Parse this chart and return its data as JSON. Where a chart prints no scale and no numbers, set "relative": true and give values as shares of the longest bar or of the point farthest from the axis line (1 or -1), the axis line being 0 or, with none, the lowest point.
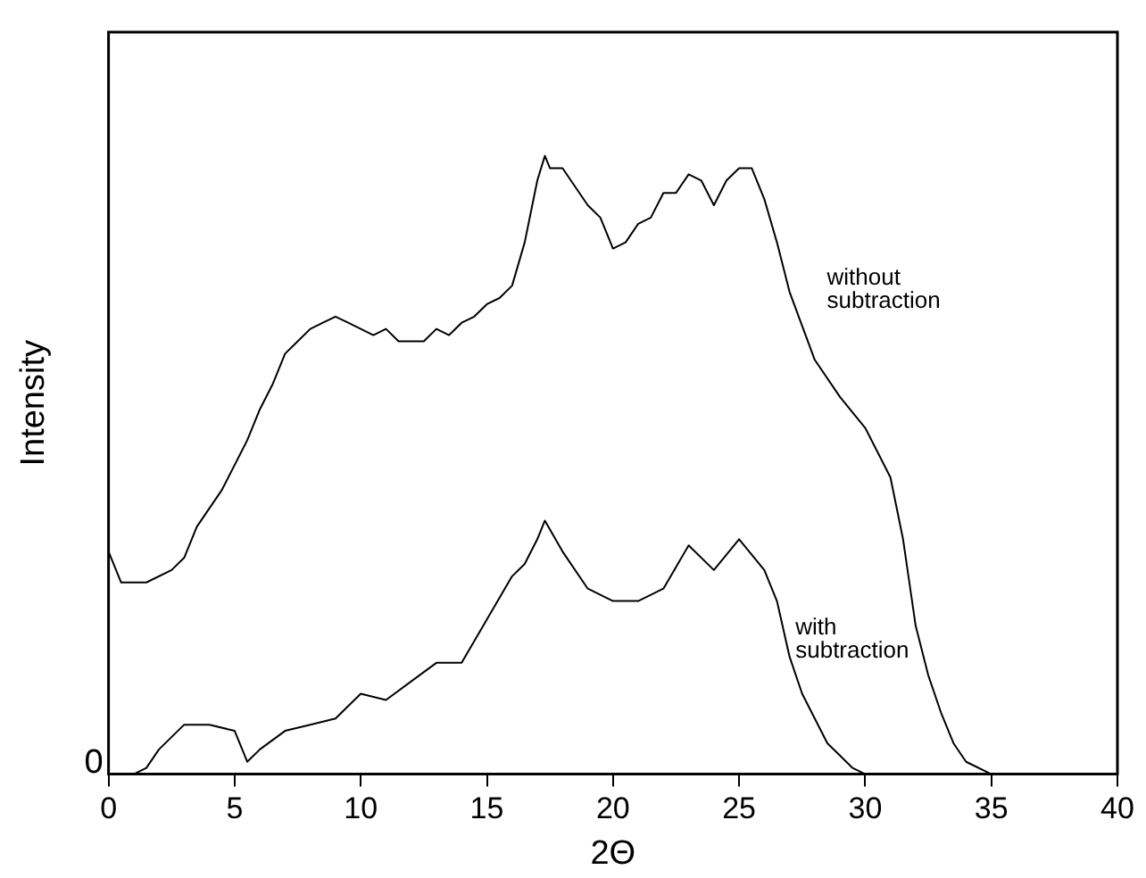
{
  "chart_data": {
    "type": "line",
    "xlabel": "2Θ",
    "ylabel": "Intensity",
    "relative": true,
    "xlim": [
      0,
      40
    ],
    "xticks": [
      0,
      5,
      10,
      15,
      20,
      25,
      30,
      35,
      40
    ],
    "grid": false,
    "legend": false,
    "marker": "none",
    "line_style": "solid",
    "annotations": [
      "0"
    ],
    "series": [
      {
        "name": "without subtraction",
        "color": "#000000",
        "x": [
          0,
          0.5,
          1.5,
          2.5,
          3,
          3.5,
          4,
          4.5,
          5,
          5.5,
          6,
          6.5,
          7,
          7.5,
          8,
          8.5,
          9,
          9.5,
          10,
          10.5,
          11,
          11.5,
          12,
          12.5,
          13,
          13.5,
          14,
          14.5,
          15,
          15.5,
          16,
          16.5,
          17,
          17.3,
          17.5,
          18,
          18.5,
          19,
          19.5,
          20,
          20.5,
          21,
          21.5,
          22,
          22.5,
          23,
          23.5,
          24,
          24.5,
          25,
          25.5,
          26,
          26.5,
          27,
          28,
          29,
          30,
          31,
          31.5,
          32,
          32.5,
          33,
          33.5,
          34,
          35,
          40
        ],
        "values": [
          0.36,
          0.31,
          0.31,
          0.33,
          0.35,
          0.4,
          0.43,
          0.46,
          0.5,
          0.54,
          0.59,
          0.63,
          0.68,
          0.7,
          0.72,
          0.73,
          0.74,
          0.73,
          0.72,
          0.71,
          0.72,
          0.7,
          0.7,
          0.7,
          0.72,
          0.71,
          0.73,
          0.74,
          0.76,
          0.77,
          0.79,
          0.86,
          0.96,
          1.0,
          0.98,
          0.98,
          0.95,
          0.92,
          0.9,
          0.85,
          0.86,
          0.89,
          0.9,
          0.94,
          0.94,
          0.97,
          0.96,
          0.92,
          0.96,
          0.98,
          0.98,
          0.93,
          0.86,
          0.78,
          0.67,
          0.61,
          0.56,
          0.48,
          0.38,
          0.24,
          0.16,
          0.1,
          0.05,
          0.02,
          0,
          0
        ]
      },
      {
        "name": "with subtraction",
        "color": "#000000",
        "x": [
          0,
          1,
          1.5,
          2,
          3,
          4,
          5,
          5.5,
          6,
          7,
          8,
          9,
          10,
          11,
          12,
          13,
          14,
          15,
          16,
          16.5,
          17,
          17.3,
          18,
          19,
          20,
          21,
          22,
          23,
          24,
          25,
          26,
          26.5,
          27,
          27.5,
          28,
          28.5,
          29,
          29.5,
          30,
          40
        ],
        "values": [
          0,
          0,
          0.01,
          0.04,
          0.08,
          0.08,
          0.07,
          0.02,
          0.04,
          0.07,
          0.08,
          0.09,
          0.13,
          0.12,
          0.15,
          0.18,
          0.18,
          0.25,
          0.32,
          0.34,
          0.38,
          0.41,
          0.36,
          0.3,
          0.28,
          0.28,
          0.3,
          0.37,
          0.33,
          0.38,
          0.33,
          0.28,
          0.19,
          0.13,
          0.09,
          0.05,
          0.03,
          0.01,
          0,
          0
        ]
      }
    ]
  }
}
